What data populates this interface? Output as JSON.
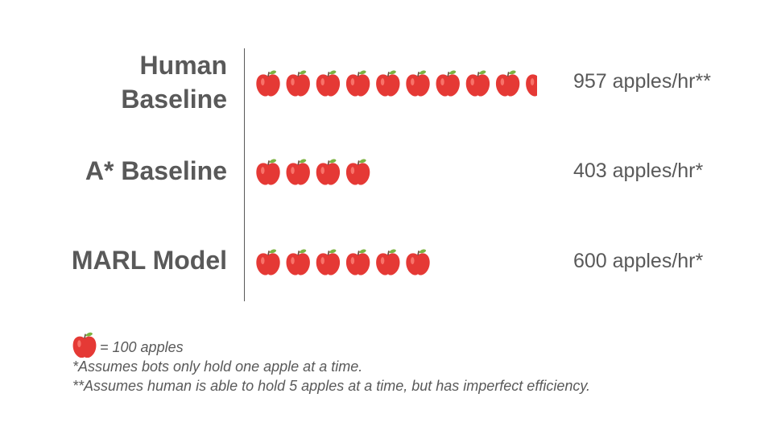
{
  "chart_data": {
    "type": "bar",
    "unit_per_icon": 100,
    "categories": [
      "Human Baseline",
      "A* Baseline",
      "MARL Model"
    ],
    "series": [
      {
        "values": [
          957,
          403,
          600
        ]
      }
    ],
    "value_labels": [
      "957 apples/hr**",
      "403 apples/hr*",
      "600 apples/hr*"
    ]
  },
  "rows": [
    {
      "label_line1": "Human",
      "label_line2": "Baseline",
      "value_text": "957 apples/hr**"
    },
    {
      "label_line1": "A* Baseline",
      "label_line2": "",
      "value_text": "403 apples/hr*"
    },
    {
      "label_line1": "MARL Model",
      "label_line2": "",
      "value_text": "600 apples/hr*"
    }
  ],
  "legend": {
    "key_text": "= 100 apples",
    "footnote1": "*Assumes bots only hold one apple at a time.",
    "footnote2": "**Assumes human is able to hold 5 apples at a time, but has imperfect efficiency."
  },
  "colors": {
    "text": "#595959",
    "apple_red": "#e53935",
    "apple_leaf": "#7cb342"
  },
  "icons": {
    "unit_icon": "apple-icon"
  }
}
